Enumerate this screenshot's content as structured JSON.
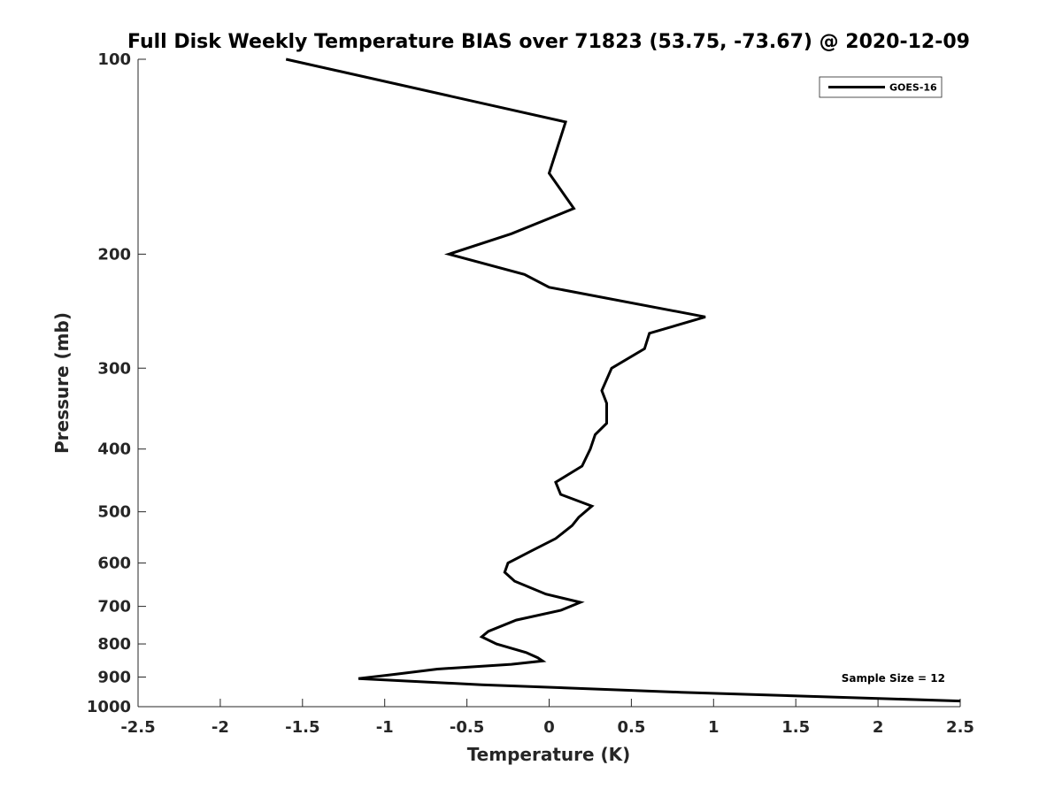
{
  "chart_data": {
    "type": "line",
    "title": "Full Disk Weekly Temperature BIAS over 71823 (53.75, -73.67) @ 2020-12-09",
    "xlabel": "Temperature (K)",
    "ylabel": "Pressure (mb)",
    "xlim": [
      -2.5,
      2.5
    ],
    "ylim": [
      100,
      1000
    ],
    "y_scale": "log",
    "y_reversed": true,
    "grid": false,
    "legend_position": "top-right",
    "x_ticks": [
      "-2.5",
      "-2",
      "-1.5",
      "-1",
      "-0.5",
      "0",
      "0.5",
      "1",
      "1.5",
      "2",
      "2.5"
    ],
    "y_ticks": [
      "100",
      "200",
      "300",
      "400",
      "500",
      "600",
      "700",
      "800",
      "900",
      "1000"
    ],
    "annotation": "Sample Size = 12",
    "series": [
      {
        "name": "GOES-16",
        "color": "#000000",
        "points": [
          {
            "x": -1.6,
            "p": 100
          },
          {
            "x": 0.1,
            "p": 125
          },
          {
            "x": 0.0,
            "p": 150
          },
          {
            "x": 0.15,
            "p": 170
          },
          {
            "x": -0.23,
            "p": 186
          },
          {
            "x": -0.61,
            "p": 200
          },
          {
            "x": -0.15,
            "p": 215
          },
          {
            "x": 0.0,
            "p": 225
          },
          {
            "x": 0.95,
            "p": 250
          },
          {
            "x": 0.61,
            "p": 265
          },
          {
            "x": 0.58,
            "p": 280
          },
          {
            "x": 0.38,
            "p": 300
          },
          {
            "x": 0.32,
            "p": 325
          },
          {
            "x": 0.35,
            "p": 340
          },
          {
            "x": 0.35,
            "p": 365
          },
          {
            "x": 0.28,
            "p": 380
          },
          {
            "x": 0.25,
            "p": 400
          },
          {
            "x": 0.2,
            "p": 425
          },
          {
            "x": 0.04,
            "p": 450
          },
          {
            "x": 0.07,
            "p": 470
          },
          {
            "x": 0.26,
            "p": 490
          },
          {
            "x": 0.18,
            "p": 510
          },
          {
            "x": 0.14,
            "p": 525
          },
          {
            "x": 0.04,
            "p": 550
          },
          {
            "x": -0.11,
            "p": 575
          },
          {
            "x": -0.25,
            "p": 600
          },
          {
            "x": -0.27,
            "p": 620
          },
          {
            "x": -0.21,
            "p": 640
          },
          {
            "x": -0.02,
            "p": 670
          },
          {
            "x": 0.19,
            "p": 690
          },
          {
            "x": 0.07,
            "p": 710
          },
          {
            "x": -0.2,
            "p": 735
          },
          {
            "x": -0.37,
            "p": 765
          },
          {
            "x": -0.41,
            "p": 780
          },
          {
            "x": -0.32,
            "p": 800
          },
          {
            "x": -0.14,
            "p": 825
          },
          {
            "x": -0.07,
            "p": 840
          },
          {
            "x": -0.04,
            "p": 850
          },
          {
            "x": -0.23,
            "p": 860
          },
          {
            "x": -0.68,
            "p": 875
          },
          {
            "x": -0.92,
            "p": 890
          },
          {
            "x": -1.16,
            "p": 905
          },
          {
            "x": -0.41,
            "p": 925
          },
          {
            "x": 0.8,
            "p": 950
          },
          {
            "x": 2.5,
            "p": 980
          }
        ]
      }
    ]
  }
}
